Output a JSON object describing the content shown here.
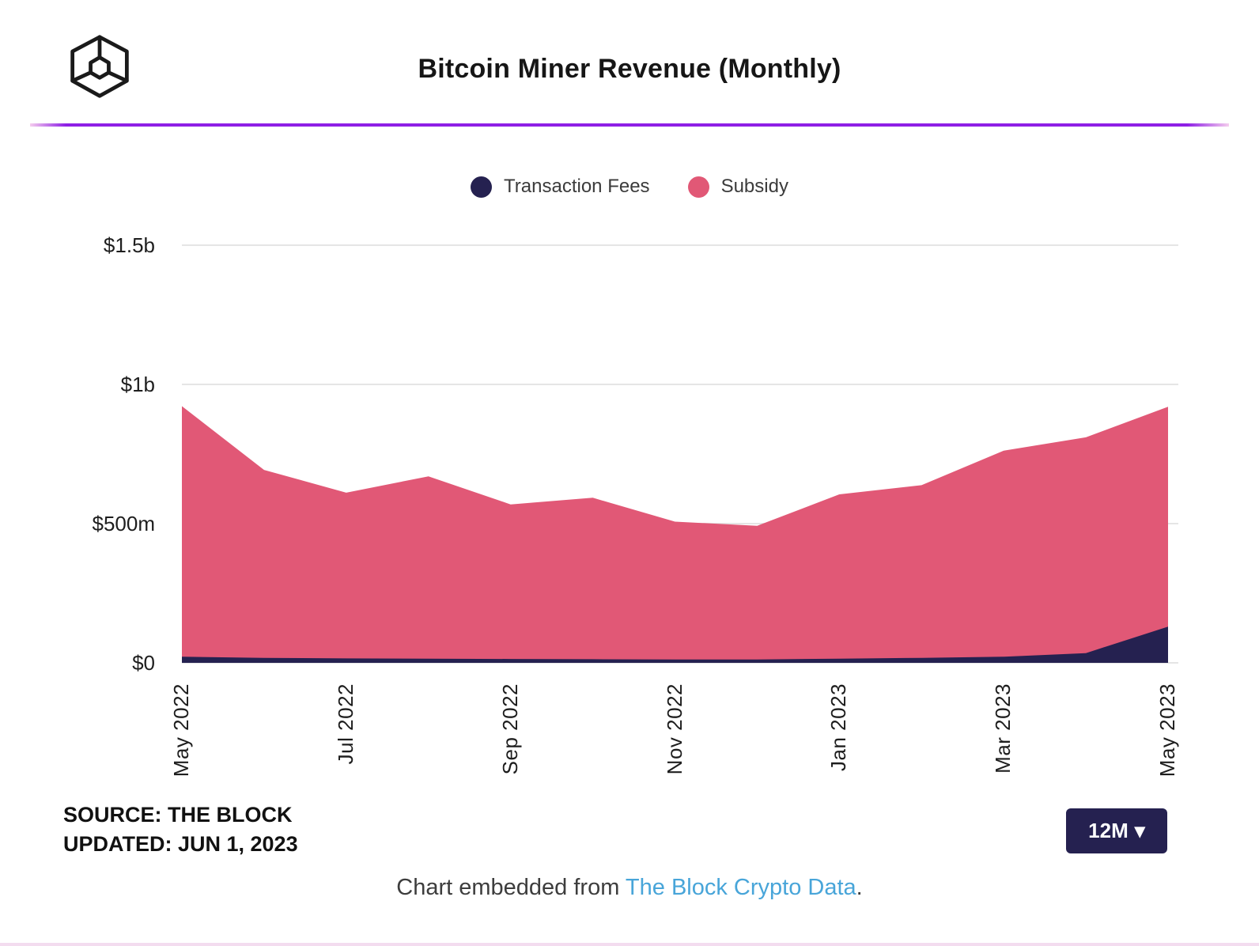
{
  "header": {
    "title": "Bitcoin Miner Revenue (Monthly)"
  },
  "colors": {
    "accent_divider": "#8e1fe5",
    "accent_divider_edge": "#f5cdee",
    "transaction_fees": "#252150",
    "subsidy": "#e15876",
    "grid": "#e5e5e5",
    "link": "#48a5d9",
    "button_bg": "#252150"
  },
  "chart_data": {
    "type": "area",
    "stacked": true,
    "title": "Bitcoin Miner Revenue (Monthly)",
    "unit": "USD millions",
    "x": [
      "May 2022",
      "Jun 2022",
      "Jul 2022",
      "Aug 2022",
      "Sep 2022",
      "Oct 2022",
      "Nov 2022",
      "Dec 2022",
      "Jan 2023",
      "Feb 2023",
      "Mar 2023",
      "Apr 2023",
      "May 2023"
    ],
    "x_tick_labels": [
      "May 2022",
      "Jul 2022",
      "Sep 2022",
      "Nov 2022",
      "Jan 2023",
      "Mar 2023",
      "May 2023"
    ],
    "series": [
      {
        "name": "Transaction Fees",
        "color": "#252150",
        "values": [
          22,
          18,
          16,
          15,
          14,
          13,
          12,
          12,
          15,
          18,
          22,
          35,
          130
        ]
      },
      {
        "name": "Subsidy",
        "color": "#e15876",
        "values": [
          900,
          675,
          595,
          655,
          555,
          580,
          495,
          480,
          590,
          620,
          740,
          775,
          790
        ]
      }
    ],
    "y_ticks": [
      {
        "label": "$1.5b",
        "value": 1500
      },
      {
        "label": "$1b",
        "value": 1000
      },
      {
        "label": "$500m",
        "value": 500
      },
      {
        "label": "$0",
        "value": 0
      }
    ],
    "ylim": [
      0,
      1500
    ],
    "grid": true,
    "legend_position": "top"
  },
  "footer": {
    "source_line1": "SOURCE: THE BLOCK",
    "source_line2": "UPDATED: JUN 1, 2023",
    "range_button": {
      "label": "12M",
      "caret": "▾"
    },
    "embed_text": "Chart embedded from",
    "embed_link": "The Block Crypto Data",
    "embed_suffix": "."
  }
}
